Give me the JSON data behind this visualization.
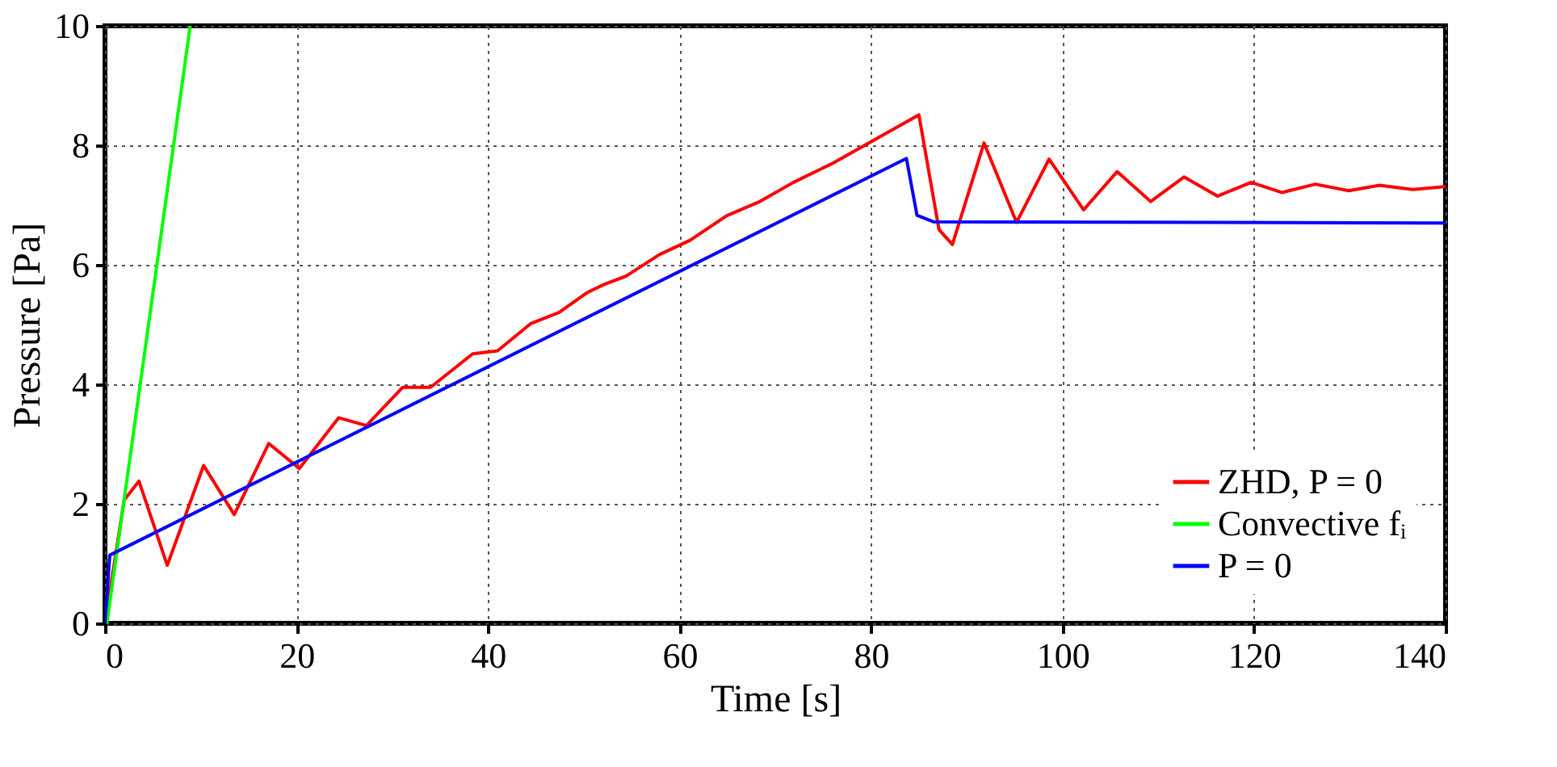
{
  "chart_data": {
    "type": "line",
    "xlabel": "Time [s]",
    "ylabel": "Pressure [Pa]",
    "xlim": [
      0,
      140
    ],
    "xticks": [
      0,
      20,
      40,
      60,
      80,
      100,
      120,
      140
    ],
    "ylim": [
      0,
      10
    ],
    "yticks": [
      0,
      2,
      4,
      6,
      8,
      10
    ],
    "grid": true,
    "legend": "bottom right",
    "marker": "none",
    "line_style": "solid",
    "series": [
      {
        "name": "ZHD, P = 0",
        "color": "#ff0000",
        "x": [
          0,
          2.0,
          3.55,
          6.5,
          10.3,
          13.5,
          17.1,
          20.3,
          24.4,
          27.3,
          31.1,
          34.0,
          38.4,
          41.0,
          44.5,
          47.4,
          50.3,
          52.1,
          54.4,
          57.9,
          61.1,
          64.9,
          68.4,
          71.9,
          76.0,
          85.0,
          87.1,
          88.5,
          91.8,
          95.2,
          98.6,
          102.2,
          105.7,
          109.2,
          112.7,
          116.2,
          119.7,
          122.9,
          126.4,
          129.9,
          133.1,
          136.6,
          140
        ],
        "values": [
          0,
          2.06,
          2.38,
          0.97,
          2.64,
          1.82,
          3.01,
          2.59,
          3.44,
          3.31,
          3.95,
          3.95,
          4.51,
          4.56,
          5.02,
          5.2,
          5.53,
          5.67,
          5.81,
          6.17,
          6.41,
          6.82,
          7.06,
          7.38,
          7.7,
          8.51,
          6.59,
          6.34,
          8.04,
          6.71,
          7.77,
          6.92,
          7.56,
          7.06,
          7.47,
          7.15,
          7.38,
          7.21,
          7.35,
          7.24,
          7.33,
          7.26,
          7.31
        ]
      },
      {
        "name": "Convective fᵢ",
        "color": "#00ff00",
        "x": [
          0.2,
          8.9
        ],
        "values": [
          0,
          10
        ]
      },
      {
        "name": "P = 0",
        "color": "#0000ff",
        "x": [
          0,
          0.5,
          83.7,
          84.8,
          86.5,
          140
        ],
        "values": [
          0,
          1.14,
          7.78,
          6.83,
          6.72,
          6.7
        ]
      }
    ]
  }
}
